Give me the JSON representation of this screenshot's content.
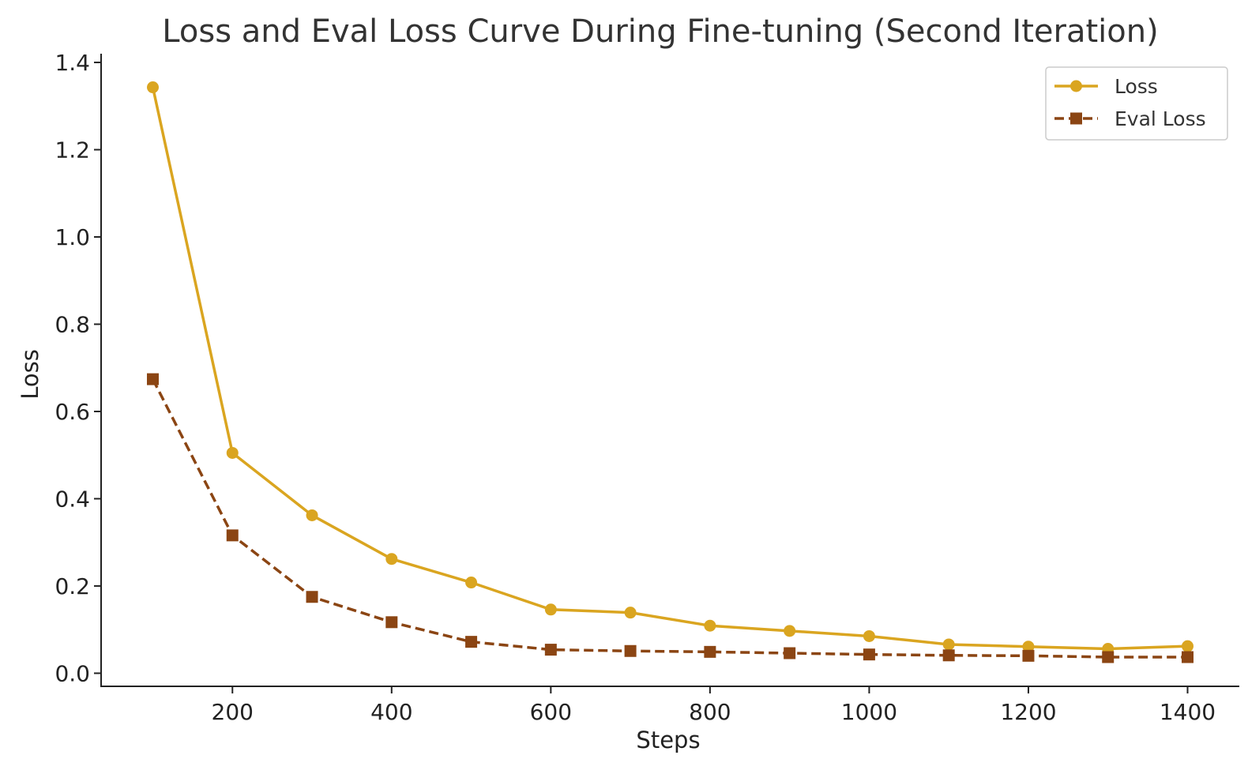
{
  "chart_data": {
    "type": "line",
    "title": "Loss and Eval Loss Curve During Fine-tuning (Second Iteration)",
    "xlabel": "Steps",
    "ylabel": "Loss",
    "x": [
      100,
      200,
      300,
      400,
      500,
      600,
      700,
      800,
      900,
      1000,
      1100,
      1200,
      1300,
      1400
    ],
    "x_ticks": [
      200,
      400,
      600,
      800,
      1000,
      1200,
      1400
    ],
    "y_ticks": [
      0.0,
      0.2,
      0.4,
      0.6,
      0.8,
      1.0,
      1.2,
      1.4
    ],
    "y_tick_labels": [
      "0.0",
      "0.2",
      "0.4",
      "0.6",
      "0.8",
      "1.0",
      "1.2",
      "1.4"
    ],
    "xlim": [
      35,
      1465
    ],
    "ylim": [
      -0.03,
      1.42
    ],
    "grid": false,
    "legend_position": "top-right",
    "series": [
      {
        "name": "Loss",
        "color": "#DAA520",
        "line_style": "solid",
        "marker": "circle",
        "values": [
          1.343,
          0.505,
          0.362,
          0.262,
          0.208,
          0.146,
          0.139,
          0.109,
          0.097,
          0.085,
          0.066,
          0.061,
          0.056,
          0.062
        ]
      },
      {
        "name": "Eval Loss",
        "color": "#8B4513",
        "line_style": "dashed",
        "marker": "square",
        "values": [
          0.674,
          0.316,
          0.175,
          0.117,
          0.072,
          0.054,
          0.051,
          0.049,
          0.046,
          0.043,
          0.041,
          0.04,
          0.037,
          0.037
        ]
      }
    ]
  }
}
